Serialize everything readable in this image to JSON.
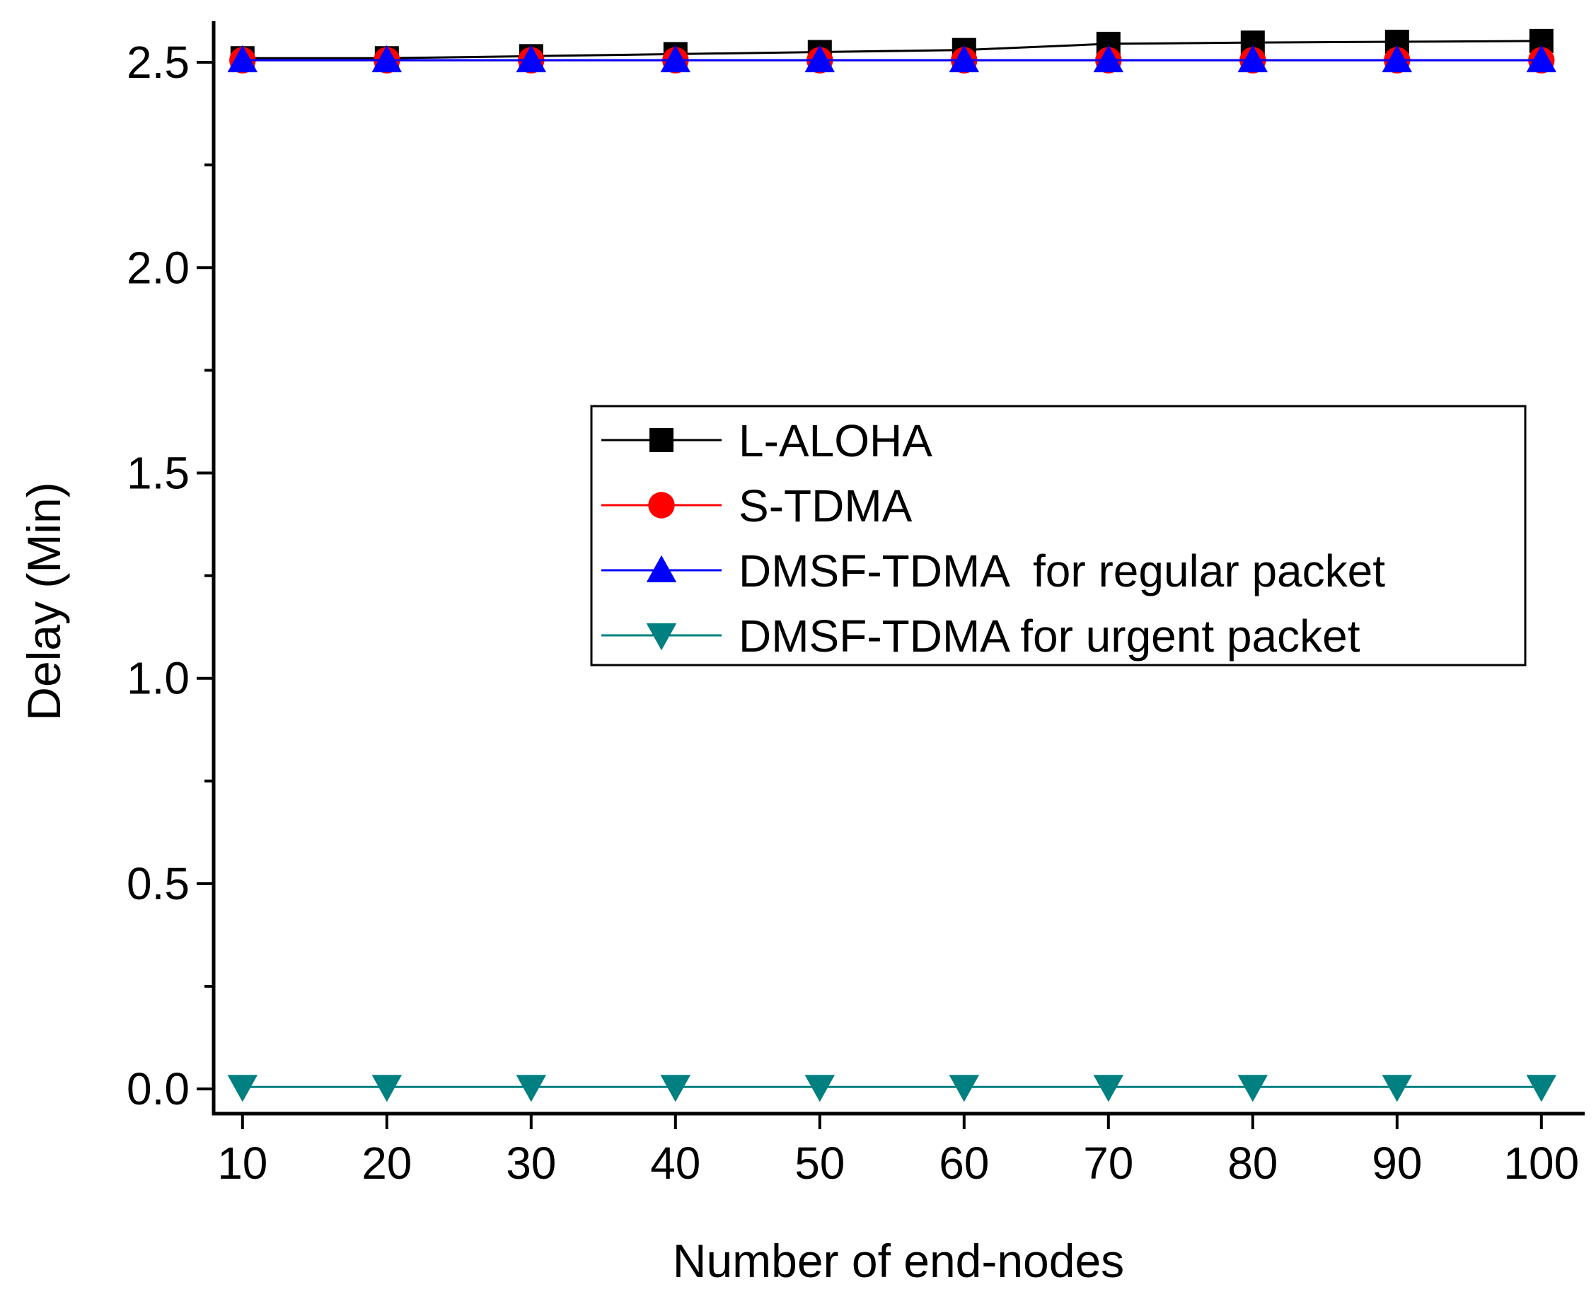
{
  "chart_data": {
    "type": "line",
    "title": "",
    "xlabel": "Number of end-nodes",
    "ylabel": "Delay (Min)",
    "x": [
      10,
      20,
      30,
      40,
      50,
      60,
      70,
      80,
      90,
      100
    ],
    "xlim": [
      8,
      103
    ],
    "ylim": [
      -0.06,
      2.6
    ],
    "x_ticks": [
      "10",
      "20",
      "30",
      "40",
      "50",
      "60",
      "70",
      "80",
      "90",
      "100"
    ],
    "y_ticks": [
      "0.0",
      "0.5",
      "1.0",
      "1.5",
      "2.0",
      "2.5"
    ],
    "y_tick_values": [
      0.0,
      0.5,
      1.0,
      1.5,
      2.0,
      2.5
    ],
    "grid": false,
    "legend_position": "center-right",
    "series": [
      {
        "name": "L-ALOHA",
        "marker": "square",
        "color": "#000000",
        "values": [
          2.51,
          2.51,
          2.515,
          2.52,
          2.525,
          2.53,
          2.545,
          2.548,
          2.55,
          2.552
        ]
      },
      {
        "name": "S-TDMA",
        "marker": "circle",
        "color": "#ff0000",
        "values": [
          2.505,
          2.505,
          2.505,
          2.505,
          2.505,
          2.505,
          2.505,
          2.505,
          2.505,
          2.505
        ]
      },
      {
        "name": "DMSF-TDMA  for regular packet",
        "marker": "triangle-up",
        "color": "#0000ff",
        "values": [
          2.505,
          2.505,
          2.505,
          2.505,
          2.505,
          2.505,
          2.505,
          2.505,
          2.505,
          2.505
        ]
      },
      {
        "name": "DMSF-TDMA for urgent packet",
        "marker": "triangle-down",
        "color": "#008080",
        "values": [
          0.005,
          0.005,
          0.005,
          0.005,
          0.005,
          0.005,
          0.005,
          0.005,
          0.005,
          0.005
        ]
      }
    ]
  }
}
